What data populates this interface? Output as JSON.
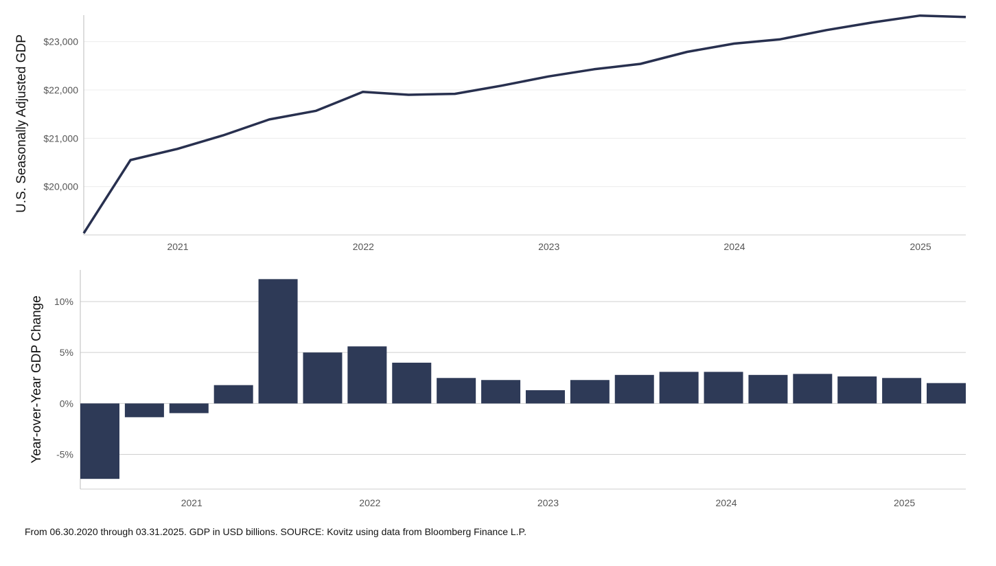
{
  "chart_data": [
    {
      "type": "line",
      "ylabel": "U.S. Seasonally Adjusted GDP",
      "xlabel": "",
      "x": [
        "2020-06-30",
        "2020-09-30",
        "2020-12-31",
        "2021-03-31",
        "2021-06-30",
        "2021-09-30",
        "2021-12-31",
        "2022-03-31",
        "2022-06-30",
        "2022-09-30",
        "2022-12-31",
        "2023-03-31",
        "2023-06-30",
        "2023-09-30",
        "2023-12-31",
        "2024-03-31",
        "2024-06-30",
        "2024-09-30",
        "2024-12-31",
        "2025-03-31"
      ],
      "values": [
        19035,
        20550,
        20780,
        21060,
        21390,
        21570,
        21960,
        21900,
        21920,
        22090,
        22280,
        22430,
        22540,
        22790,
        22960,
        23050,
        23240,
        23400,
        23540,
        23510
      ],
      "ylim": [
        19000,
        23550
      ],
      "yticks": [
        20000,
        21000,
        22000,
        23000
      ],
      "ytick_labels": [
        "$20,000",
        "$21,000",
        "$22,000",
        "$23,000"
      ],
      "xticks": [
        "2021",
        "2022",
        "2023",
        "2024",
        "2025"
      ],
      "grid": "horizontal",
      "color": "#28304f"
    },
    {
      "type": "bar",
      "ylabel": "Year-over-Year GDP Change",
      "xlabel": "",
      "categories": [
        "2020-06-30",
        "2020-09-30",
        "2020-12-31",
        "2021-03-31",
        "2021-06-30",
        "2021-09-30",
        "2021-12-31",
        "2022-03-31",
        "2022-06-30",
        "2022-09-30",
        "2022-12-31",
        "2023-03-31",
        "2023-06-30",
        "2023-09-30",
        "2023-12-31",
        "2024-03-31",
        "2024-06-30",
        "2024-09-30",
        "2024-12-31",
        "2025-03-31"
      ],
      "values": [
        -7.4,
        -1.35,
        -0.95,
        1.8,
        12.2,
        5.0,
        5.6,
        4.0,
        2.5,
        2.3,
        1.3,
        2.3,
        2.8,
        3.1,
        3.1,
        2.8,
        2.9,
        2.65,
        2.5,
        2.0
      ],
      "ylim": [
        -8.4,
        13.1
      ],
      "yticks": [
        -5,
        0,
        5,
        10
      ],
      "ytick_labels": [
        "-5%",
        "0%",
        "5%",
        "10%"
      ],
      "xticks": [
        "2021",
        "2022",
        "2023",
        "2024",
        "2025"
      ],
      "grid": "horizontal",
      "color": "#2e3a57"
    }
  ],
  "footnote": "From 06.30.2020 through 03.31.2025. GDP in USD billions. SOURCE: Kovitz using data from Bloomberg Finance L.P."
}
